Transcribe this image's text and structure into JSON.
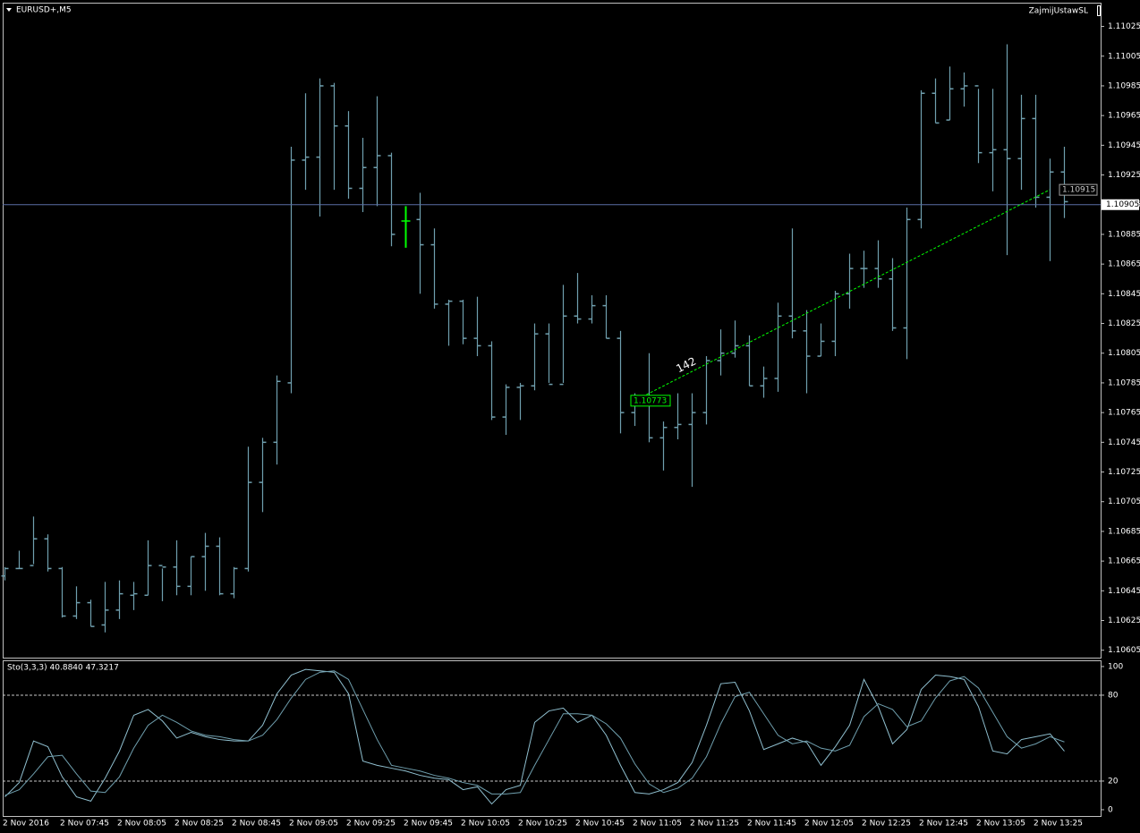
{
  "chart_data": [
    {
      "type": "ohlc",
      "title": "EURUSD+,M5",
      "expert": "ZajmijUstawSL",
      "categories": [
        "2 Nov 2016",
        null,
        null,
        null,
        "2 Nov 07:45",
        null,
        null,
        null,
        "2 Nov 08:05",
        null,
        null,
        null,
        "2 Nov 08:25",
        null,
        null,
        null,
        "2 Nov 08:45",
        null,
        null,
        null,
        "2 Nov 09:05",
        null,
        null,
        null,
        "2 Nov 09:25",
        null,
        null,
        null,
        "2 Nov 09:45",
        null,
        null,
        null,
        "2 Nov 10:05",
        null,
        null,
        null,
        "2 Nov 10:25",
        null,
        null,
        null,
        "2 Nov 10:45",
        null,
        null,
        null,
        "2 Nov 11:05",
        null,
        null,
        null,
        "2 Nov 11:25",
        null,
        null,
        null,
        "2 Nov 11:45",
        null,
        null,
        null,
        "2 Nov 12:05",
        null,
        null,
        null,
        "2 Nov 12:25",
        null,
        null,
        null,
        "2 Nov 12:45",
        null,
        null,
        null,
        "2 Nov 13:05",
        null,
        null,
        null,
        "2 Nov 13:25",
        null,
        null
      ],
      "open": [
        1.10655,
        1.1066,
        1.10662,
        1.1068,
        1.1066,
        1.10628,
        1.10637,
        1.10622,
        1.10632,
        1.10642,
        1.10642,
        1.10662,
        1.10661,
        1.10648,
        1.10668,
        1.10675,
        1.10643,
        1.1066,
        1.10718,
        1.10745,
        1.10785,
        1.10935,
        1.10937,
        1.10985,
        1.10958,
        1.10916,
        1.1093,
        1.10938,
        1.10894,
        1.10895,
        1.10878,
        1.10838,
        1.1084,
        1.10815,
        1.1081,
        1.10762,
        1.10782,
        1.10783,
        1.10818,
        1.10784,
        1.1083,
        1.10828,
        1.10837,
        1.10815,
        1.10765,
        1.1077,
        1.10748,
        1.10755,
        1.10757,
        1.10765,
        1.108,
        1.10805,
        1.1081,
        1.10783,
        1.10788,
        1.1083,
        1.1082,
        1.10803,
        1.10813,
        1.10845,
        1.10862,
        1.10862,
        1.10855,
        1.10822,
        1.10895,
        1.1098,
        1.10962,
        1.10983,
        1.10985,
        1.1094,
        1.10942,
        1.10936,
        1.10963,
        1.1091,
        1.10927
      ],
      "high": [
        1.10661,
        1.10672,
        1.10695,
        1.10683,
        1.10661,
        1.10648,
        1.10639,
        1.10651,
        1.10652,
        1.10651,
        1.10679,
        1.1066,
        1.10679,
        1.10668,
        1.10684,
        1.10681,
        1.10661,
        1.10742,
        1.10748,
        1.1079,
        1.10944,
        1.1098,
        1.1099,
        1.10987,
        1.10968,
        1.1095,
        1.10978,
        1.1094,
        1.10904,
        1.10913,
        1.10889,
        1.10841,
        1.10841,
        1.10843,
        1.10813,
        1.10784,
        1.10785,
        1.10825,
        1.10825,
        1.10851,
        1.10859,
        1.10844,
        1.10844,
        1.1082,
        1.10778,
        1.10805,
        1.10759,
        1.10778,
        1.10778,
        1.10803,
        1.10821,
        1.10827,
        1.10817,
        1.10796,
        1.10839,
        1.10889,
        1.10834,
        1.10825,
        1.10847,
        1.10872,
        1.10874,
        1.10881,
        1.10869,
        1.10903,
        1.10982,
        1.1099,
        1.10998,
        1.10994,
        1.10983,
        1.10983,
        1.11013,
        1.10979,
        1.10979,
        1.10936,
        1.10944
      ],
      "low": [
        1.10652,
        1.1066,
        1.10663,
        1.10658,
        1.10627,
        1.10626,
        1.10621,
        1.10617,
        1.10626,
        1.10632,
        1.10642,
        1.10638,
        1.10642,
        1.10642,
        1.10645,
        1.10642,
        1.1064,
        1.10658,
        1.10698,
        1.1073,
        1.10778,
        1.10915,
        1.10897,
        1.10915,
        1.10909,
        1.109,
        1.10904,
        1.10877,
        1.10876,
        1.10845,
        1.10835,
        1.1081,
        1.10811,
        1.10803,
        1.1076,
        1.1075,
        1.1076,
        1.1078,
        1.10785,
        1.10785,
        1.10825,
        1.10825,
        1.10815,
        1.10751,
        1.10756,
        1.10745,
        1.10726,
        1.10747,
        1.10715,
        1.10757,
        1.1079,
        1.10802,
        1.10783,
        1.10775,
        1.10779,
        1.10815,
        1.10778,
        1.10803,
        1.10803,
        1.10835,
        1.10849,
        1.10849,
        1.1082,
        1.10801,
        1.10889,
        1.1096,
        1.10962,
        1.10971,
        1.10933,
        1.10914,
        1.10871,
        1.10915,
        1.10903,
        1.10867,
        1.10896
      ],
      "close": [
        1.1066,
        1.1066,
        1.1068,
        1.1066,
        1.10628,
        1.10637,
        1.10621,
        1.10632,
        1.10643,
        1.10643,
        1.10662,
        1.10661,
        1.10648,
        1.10668,
        1.10675,
        1.10643,
        1.1066,
        1.10718,
        1.10745,
        1.10786,
        1.10935,
        1.10937,
        1.10985,
        1.10958,
        1.10916,
        1.1093,
        1.10938,
        1.10885,
        1.10894,
        1.10878,
        1.10838,
        1.1084,
        1.10815,
        1.1081,
        1.10762,
        1.10782,
        1.10783,
        1.10818,
        1.10784,
        1.1083,
        1.10828,
        1.10837,
        1.10815,
        1.10765,
        1.1077,
        1.10748,
        1.10755,
        1.10757,
        1.10765,
        1.108,
        1.10805,
        1.1081,
        1.10783,
        1.10788,
        1.1083,
        1.1082,
        1.10803,
        1.10813,
        1.10845,
        1.10862,
        1.10862,
        1.10855,
        1.10822,
        1.10895,
        1.1098,
        1.1096,
        1.10983,
        1.10985,
        1.1094,
        1.10942,
        1.10936,
        1.10963,
        1.1091,
        1.10927,
        1.10907
      ],
      "color": "#6f9fae",
      "highlight_bar": 28,
      "highlight_color": "#00ff00",
      "ylim": [
        1.106,
        1.11041
      ],
      "yticks": [
        1.11025,
        1.11005,
        1.10985,
        1.10965,
        1.10945,
        1.10925,
        1.10905,
        1.10885,
        1.10865,
        1.10845,
        1.10825,
        1.10805,
        1.10785,
        1.10765,
        1.10745,
        1.10725,
        1.10705,
        1.10685,
        1.10665,
        1.10645,
        1.10625,
        1.10605
      ],
      "grid": false,
      "current_price": 1.10905,
      "current_price_color": "#5a6ea6",
      "trendline": {
        "start": 44,
        "end": 73,
        "start_value": 1.10773,
        "end_value": 1.10915,
        "distance": 142,
        "color": "#00ff00"
      }
    },
    {
      "type": "line",
      "title": "Sto(3,3,3) 40.8840 47.3217",
      "series": [
        {
          "color": "#8fbfcf",
          "values": [
            9,
            19,
            48,
            44,
            23,
            9,
            6,
            22,
            41,
            66,
            70,
            62,
            50,
            54,
            51,
            49,
            48,
            48,
            59,
            81,
            94,
            98,
            97,
            96,
            81,
            34,
            31,
            29,
            27,
            24,
            22,
            21,
            14,
            16,
            4,
            14,
            17,
            61,
            69,
            71,
            61,
            66,
            52,
            31,
            12,
            11,
            14,
            19,
            33,
            59,
            88,
            89,
            69,
            42,
            46,
            50,
            47,
            31,
            44,
            59,
            91,
            72,
            46,
            56,
            84,
            94,
            93,
            91,
            72,
            41,
            39,
            49,
            51,
            53,
            40.884
          ]
        },
        {
          "color": "#6f9fae",
          "values": [
            10,
            14,
            25,
            37,
            38,
            25,
            13,
            12,
            23,
            43,
            59,
            66,
            61,
            55,
            52,
            51,
            49,
            48,
            52,
            63,
            78,
            91,
            96,
            97,
            91,
            70,
            49,
            31,
            29,
            27,
            24,
            22,
            19,
            17,
            11,
            11,
            12,
            31,
            49,
            67,
            67,
            66,
            60,
            50,
            32,
            18,
            12,
            15,
            22,
            37,
            60,
            79,
            82,
            67,
            52,
            46,
            48,
            43,
            41,
            45,
            65,
            74,
            70,
            58,
            62,
            78,
            90,
            93,
            85,
            68,
            51,
            43,
            46,
            51,
            47.3217
          ]
        }
      ],
      "ylim": [
        -4.4,
        103.1
      ],
      "yticks": [
        100,
        80,
        20,
        0
      ],
      "levels": [
        80,
        20
      ],
      "level_color": "#c8c8c8"
    }
  ]
}
